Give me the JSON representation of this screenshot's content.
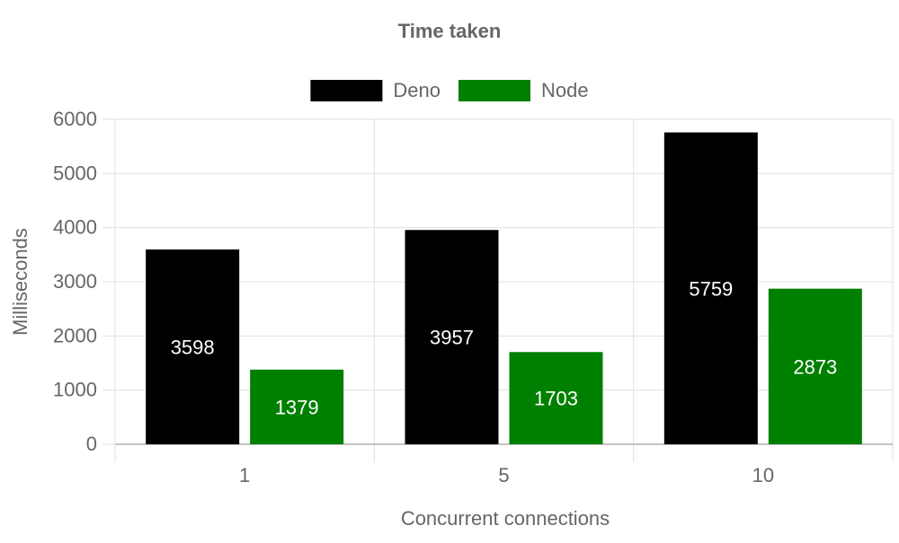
{
  "chart_data": {
    "type": "bar",
    "title": "Time taken",
    "xlabel": "Concurrent connections",
    "ylabel": "Milliseconds",
    "categories": [
      "1",
      "5",
      "10"
    ],
    "series": [
      {
        "name": "Deno",
        "color": "#000000",
        "values": [
          3598,
          3957,
          5759
        ]
      },
      {
        "name": "Node",
        "color": "#008000",
        "values": [
          1379,
          1703,
          2873
        ]
      }
    ],
    "ylim": [
      0,
      6000
    ],
    "yticks": [
      0,
      1000,
      2000,
      3000,
      4000,
      5000,
      6000
    ],
    "grid": true,
    "legend_position": "top-center",
    "data_labels": true
  }
}
